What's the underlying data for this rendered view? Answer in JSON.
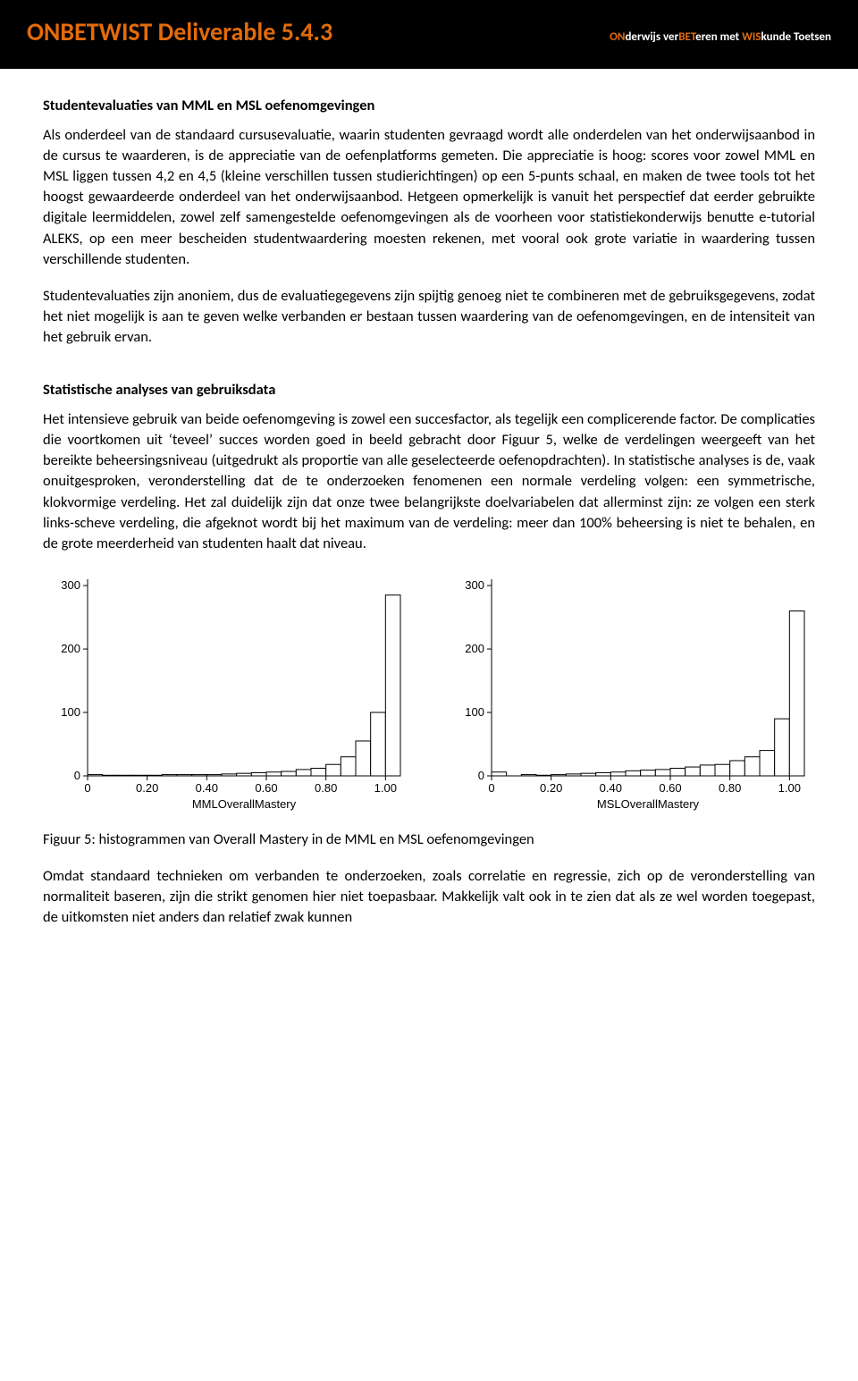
{
  "header": {
    "title": "ONBETWIST Deliverable 5.4.3",
    "subtitle_parts": {
      "on": "ON",
      "der": "derwijs ver",
      "bet": "BET",
      "mid": "eren met ",
      "wis": "WIS",
      "end": "kunde Toetsen"
    }
  },
  "sections": {
    "s1_title": "Studentevaluaties van MML en MSL oefenomgevingen",
    "s1_p1": "Als onderdeel van de standaard cursusevaluatie, waarin studenten gevraagd wordt alle onderdelen van het onderwijsaanbod in de cursus te waarderen, is de appreciatie van de oefenplatforms gemeten. Die appreciatie is hoog: scores voor zowel MML en MSL liggen tussen 4,2 en 4,5 (kleine verschillen tussen studierichtingen) op een 5-punts schaal, en maken de twee tools tot het hoogst gewaardeerde onderdeel van het onderwijsaanbod. Hetgeen opmerkelijk is vanuit het perspectief dat eerder gebruikte digitale leermiddelen, zowel zelf samengestelde oefenomgevingen als de voorheen voor statistiekonderwijs benutte e-tutorial ALEKS, op een meer bescheiden studentwaardering moesten rekenen, met vooral ook grote variatie in waardering tussen verschillende studenten.",
    "s1_p2": "Studentevaluaties zijn anoniem, dus de evaluatiegegevens zijn spijtig genoeg niet te combineren met de gebruiksgegevens, zodat het niet mogelijk is aan te geven welke verbanden er bestaan tussen waardering van de oefenomgevingen, en de intensiteit van het gebruik ervan.",
    "s2_title": "Statistische analyses van gebruiksdata",
    "s2_p1": "Het intensieve gebruik van beide oefenomgeving is zowel een succesfactor, als tegelijk een complicerende factor. De complicaties die voortkomen uit ‘teveel’ succes worden goed in beeld gebracht door Figuur 5, welke de verdelingen weergeeft van het bereikte beheersingsniveau (uitgedrukt als proportie van alle geselecteerde oefenopdrachten). In statistische analyses is de, vaak onuitgesproken, veronderstelling dat de te onderzoeken fenomenen een normale verdeling volgen: een symmetrische, klokvormige verdeling. Het zal duidelijk zijn dat onze twee belangrijkste doelvariabelen dat allerminst zijn: ze volgen een sterk links-scheve verdeling, die afgeknot wordt bij het maximum van de verdeling: meer dan 100% beheersing is niet te behalen, en de grote meerderheid van studenten haalt dat niveau.",
    "fig_caption": "Figuur 5: histogrammen van Overall Mastery in de MML en MSL oefenomgevingen",
    "s2_p2": "Omdat standaard technieken om verbanden te onderzoeken, zoals correlatie en regressie, zich op de veronderstelling van normaliteit baseren, zijn die strikt genomen hier niet toepasbaar. Makkelijk valt ook in te zien dat als ze wel worden toegepast, de uitkomsten niet anders dan relatief zwak kunnen"
  },
  "charts": {
    "mml": {
      "type": "histogram",
      "xlabel": "MMLOverallMastery",
      "y_ticks": [
        0,
        100,
        200,
        300
      ],
      "y_max": 310,
      "x_ticks": [
        "0",
        "0.20",
        "0.40",
        "0.60",
        "0.80",
        "1.00"
      ],
      "bins": [
        {
          "x": 0.0,
          "count": 2
        },
        {
          "x": 0.05,
          "count": 1
        },
        {
          "x": 0.1,
          "count": 1
        },
        {
          "x": 0.15,
          "count": 1
        },
        {
          "x": 0.2,
          "count": 1
        },
        {
          "x": 0.25,
          "count": 2
        },
        {
          "x": 0.3,
          "count": 2
        },
        {
          "x": 0.35,
          "count": 2
        },
        {
          "x": 0.4,
          "count": 2
        },
        {
          "x": 0.45,
          "count": 3
        },
        {
          "x": 0.5,
          "count": 4
        },
        {
          "x": 0.55,
          "count": 5
        },
        {
          "x": 0.6,
          "count": 6
        },
        {
          "x": 0.65,
          "count": 7
        },
        {
          "x": 0.7,
          "count": 10
        },
        {
          "x": 0.75,
          "count": 12
        },
        {
          "x": 0.8,
          "count": 18
        },
        {
          "x": 0.85,
          "count": 30
        },
        {
          "x": 0.9,
          "count": 55
        },
        {
          "x": 0.95,
          "count": 100
        },
        {
          "x": 1.0,
          "count": 285
        }
      ],
      "bar_fill": "#ffffff",
      "bar_stroke": "#000000",
      "axis_color": "#000000",
      "background": "#ffffff",
      "font_family": "Arial",
      "label_fontsize": 13
    },
    "msl": {
      "type": "histogram",
      "xlabel": "MSLOverallMastery",
      "y_ticks": [
        0,
        100,
        200,
        300
      ],
      "y_max": 310,
      "x_ticks": [
        "0",
        "0.20",
        "0.40",
        "0.60",
        "0.80",
        "1.00"
      ],
      "bins": [
        {
          "x": 0.0,
          "count": 6
        },
        {
          "x": 0.05,
          "count": 0
        },
        {
          "x": 0.1,
          "count": 2
        },
        {
          "x": 0.15,
          "count": 1
        },
        {
          "x": 0.2,
          "count": 2
        },
        {
          "x": 0.25,
          "count": 3
        },
        {
          "x": 0.3,
          "count": 4
        },
        {
          "x": 0.35,
          "count": 5
        },
        {
          "x": 0.4,
          "count": 6
        },
        {
          "x": 0.45,
          "count": 8
        },
        {
          "x": 0.5,
          "count": 9
        },
        {
          "x": 0.55,
          "count": 10
        },
        {
          "x": 0.6,
          "count": 12
        },
        {
          "x": 0.65,
          "count": 14
        },
        {
          "x": 0.7,
          "count": 17
        },
        {
          "x": 0.75,
          "count": 18
        },
        {
          "x": 0.8,
          "count": 24
        },
        {
          "x": 0.85,
          "count": 30
        },
        {
          "x": 0.9,
          "count": 40
        },
        {
          "x": 0.95,
          "count": 90
        },
        {
          "x": 1.0,
          "count": 260
        }
      ],
      "bar_fill": "#ffffff",
      "bar_stroke": "#000000",
      "axis_color": "#000000",
      "background": "#ffffff",
      "font_family": "Arial",
      "label_fontsize": 13
    }
  }
}
